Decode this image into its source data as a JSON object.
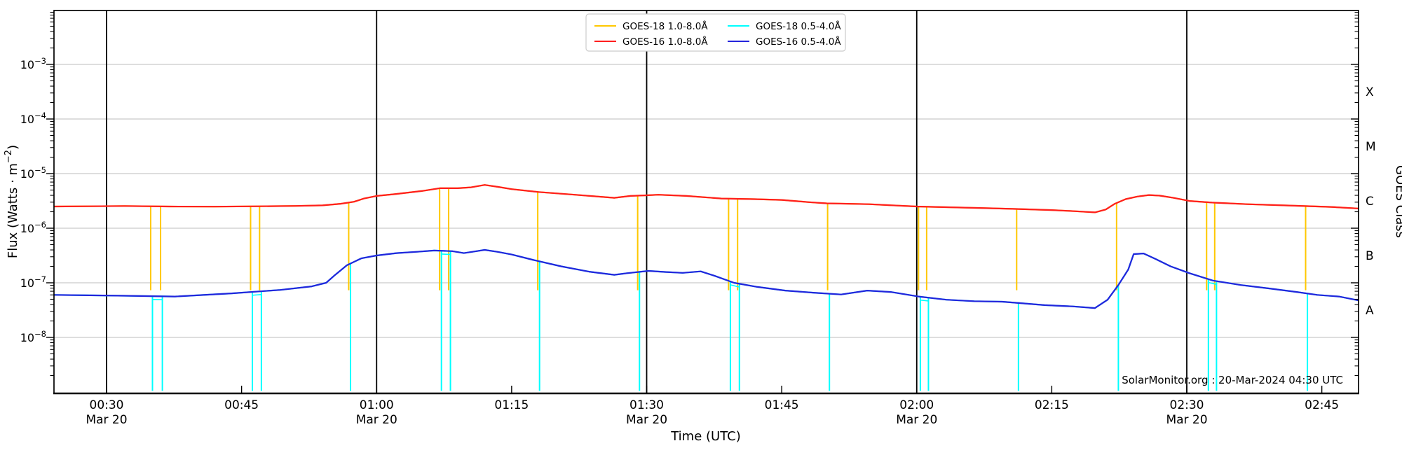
{
  "annotations": {
    "watermark": "SolarMonitor.org : 20-Mar-2024 04:30 UTC"
  },
  "colors": {
    "goes18_long": "#FFC800",
    "goes16_long": "#FF1E1E",
    "goes18_short": "#00FFFF",
    "goes16_short": "#2424DC",
    "grid": "#C9C9C9",
    "frame": "#000000",
    "legend_border": "#CCCCCC",
    "background": "#FFFFFF"
  },
  "chart_data": {
    "type": "line",
    "title": "",
    "x_axis": {
      "label": "Time (UTC)",
      "unit": "minutes after 2024-03-20 00:00 UTC",
      "range_minutes": [
        24.13,
        169.06
      ],
      "major_ticks": [
        {
          "t": 30,
          "label": "00:30",
          "date_label": "Mar 20"
        },
        {
          "t": 45,
          "label": "00:45"
        },
        {
          "t": 60,
          "label": "01:00",
          "date_label": "Mar 20"
        },
        {
          "t": 75,
          "label": "01:15"
        },
        {
          "t": 90,
          "label": "01:30",
          "date_label": "Mar 20"
        },
        {
          "t": 105,
          "label": "01:45"
        },
        {
          "t": 120,
          "label": "02:00",
          "date_label": "Mar 20"
        },
        {
          "t": 135,
          "label": "02:15"
        },
        {
          "t": 150,
          "label": "02:30",
          "date_label": "Mar 20"
        },
        {
          "t": 165,
          "label": "02:45"
        }
      ],
      "day_boundary_line_times": [
        30,
        60,
        90,
        120,
        150
      ]
    },
    "y_axis": {
      "label": "Flux (Watts · m−2)",
      "label_parts": [
        "Flux (Watts · m",
        "−2",
        ")"
      ],
      "scale": "log",
      "range_exponents": [
        -2,
        -9
      ],
      "labeled_exponents": [
        {
          "exp": -3,
          "sup": "−3"
        },
        {
          "exp": -4,
          "sup": "−4"
        },
        {
          "exp": -5,
          "sup": "−5"
        },
        {
          "exp": -6,
          "sup": "−6"
        },
        {
          "exp": -7,
          "sup": "−7"
        },
        {
          "exp": -8,
          "sup": "−8"
        }
      ],
      "grid": true
    },
    "y_axis_right": {
      "label": "GOES Class",
      "classes": [
        {
          "label": "X",
          "center_exponent": -3.5
        },
        {
          "label": "M",
          "center_exponent": -4.5
        },
        {
          "label": "C",
          "center_exponent": -5.5
        },
        {
          "label": "B",
          "center_exponent": -6.5
        },
        {
          "label": "A",
          "center_exponent": -7.5
        }
      ]
    },
    "legend_position": "top-center",
    "series": [
      {
        "name": "GOES-18 1.0-8.0Å",
        "color": "#FFC800",
        "points": [
          [
            24.2,
            2.5e-06
          ],
          [
            28,
            2.52e-06
          ],
          [
            32,
            2.55e-06
          ],
          [
            37,
            2.5e-06
          ],
          [
            42,
            2.48e-06
          ],
          [
            47,
            2.52e-06
          ],
          [
            51,
            2.56e-06
          ],
          [
            54,
            2.62e-06
          ],
          [
            56,
            2.8e-06
          ],
          [
            57.5,
            3.05e-06
          ],
          [
            58.6,
            3.5e-06
          ],
          [
            60,
            3.9e-06
          ],
          [
            62,
            4.2e-06
          ],
          [
            65,
            4.8e-06
          ],
          [
            67,
            5.4e-06
          ],
          [
            69,
            5.4e-06
          ],
          [
            70.5,
            5.6e-06
          ],
          [
            72,
            6.2e-06
          ],
          [
            73.5,
            5.7e-06
          ],
          [
            75,
            5.2e-06
          ],
          [
            78,
            4.6e-06
          ],
          [
            82,
            4.1e-06
          ],
          [
            86.4,
            3.6e-06
          ],
          [
            88.2,
            3.9e-06
          ],
          [
            90,
            4e-06
          ],
          [
            91.3,
            4.1e-06
          ],
          [
            94.4,
            3.9e-06
          ],
          [
            98.3,
            3.5e-06
          ],
          [
            102,
            3.4e-06
          ],
          [
            105,
            3.3e-06
          ],
          [
            108,
            3e-06
          ],
          [
            110,
            2.85e-06
          ],
          [
            114.7,
            2.75e-06
          ],
          [
            120,
            2.5e-06
          ],
          [
            127,
            2.35e-06
          ],
          [
            131,
            2.25e-06
          ],
          [
            135,
            2.15e-06
          ],
          [
            137.5,
            2.05e-06
          ],
          [
            139.8,
            1.95e-06
          ],
          [
            141,
            2.2e-06
          ],
          [
            142,
            2.8e-06
          ],
          [
            143.2,
            3.4e-06
          ],
          [
            144.5,
            3.8e-06
          ],
          [
            145.8,
            4.05e-06
          ],
          [
            147,
            3.95e-06
          ],
          [
            148.5,
            3.6e-06
          ],
          [
            150.3,
            3.15e-06
          ],
          [
            152.8,
            2.95e-06
          ],
          [
            156.7,
            2.75e-06
          ],
          [
            161.4,
            2.6e-06
          ],
          [
            166,
            2.45e-06
          ],
          [
            169,
            2.3e-06
          ]
        ],
        "data_gap_times": [
          34.9,
          36.0,
          46.0,
          47.0,
          56.9,
          67.0,
          68.0,
          77.9,
          89.0,
          99.1,
          100.1,
          110.1,
          120.2,
          121.1,
          131.1,
          142.2,
          152.2,
          153.1,
          163.2
        ],
        "data_gap_floor_flux": 7.3e-08
      },
      {
        "name": "GOES-16 1.0-8.0Å",
        "color": "#FF1E1E",
        "points": [
          [
            24.2,
            2.5e-06
          ],
          [
            28,
            2.52e-06
          ],
          [
            32,
            2.55e-06
          ],
          [
            37,
            2.5e-06
          ],
          [
            42,
            2.48e-06
          ],
          [
            47,
            2.52e-06
          ],
          [
            51,
            2.56e-06
          ],
          [
            54,
            2.62e-06
          ],
          [
            56,
            2.8e-06
          ],
          [
            57.5,
            3.05e-06
          ],
          [
            58.6,
            3.5e-06
          ],
          [
            60,
            3.9e-06
          ],
          [
            62,
            4.2e-06
          ],
          [
            65,
            4.8e-06
          ],
          [
            67,
            5.4e-06
          ],
          [
            69,
            5.4e-06
          ],
          [
            70.5,
            5.6e-06
          ],
          [
            72,
            6.2e-06
          ],
          [
            73.5,
            5.7e-06
          ],
          [
            75,
            5.2e-06
          ],
          [
            78,
            4.6e-06
          ],
          [
            82,
            4.1e-06
          ],
          [
            86.4,
            3.6e-06
          ],
          [
            88.2,
            3.9e-06
          ],
          [
            90,
            4e-06
          ],
          [
            91.3,
            4.1e-06
          ],
          [
            94.4,
            3.9e-06
          ],
          [
            98.3,
            3.5e-06
          ],
          [
            102,
            3.4e-06
          ],
          [
            105,
            3.3e-06
          ],
          [
            108,
            3e-06
          ],
          [
            110,
            2.85e-06
          ],
          [
            114.7,
            2.75e-06
          ],
          [
            120,
            2.5e-06
          ],
          [
            127,
            2.35e-06
          ],
          [
            131,
            2.25e-06
          ],
          [
            135,
            2.15e-06
          ],
          [
            137.5,
            2.05e-06
          ],
          [
            139.8,
            1.95e-06
          ],
          [
            141,
            2.2e-06
          ],
          [
            142,
            2.8e-06
          ],
          [
            143.2,
            3.4e-06
          ],
          [
            144.5,
            3.8e-06
          ],
          [
            145.8,
            4.05e-06
          ],
          [
            147,
            3.95e-06
          ],
          [
            148.5,
            3.6e-06
          ],
          [
            150.3,
            3.15e-06
          ],
          [
            152.8,
            2.95e-06
          ],
          [
            156.7,
            2.75e-06
          ],
          [
            161.4,
            2.6e-06
          ],
          [
            166,
            2.45e-06
          ],
          [
            169,
            2.3e-06
          ]
        ]
      },
      {
        "name": "GOES-18 0.5-4.0Å",
        "color": "#00FFFF",
        "points": [
          [
            24.2,
            6e-08
          ],
          [
            28,
            5.9e-08
          ],
          [
            32,
            5.8e-08
          ],
          [
            37.6,
            5.6e-08
          ],
          [
            43.9,
            6.4e-08
          ],
          [
            49.3,
            7.4e-08
          ],
          [
            52.8,
            8.6e-08
          ],
          [
            54.4,
            1e-07
          ],
          [
            55.4,
            1.4e-07
          ],
          [
            56.7,
            2.1e-07
          ],
          [
            58.3,
            2.8e-07
          ],
          [
            60,
            3.16e-07
          ],
          [
            62.2,
            3.5e-07
          ],
          [
            64.5,
            3.7e-07
          ],
          [
            66.4,
            3.9e-07
          ],
          [
            68.4,
            3.8e-07
          ],
          [
            69.7,
            3.5e-07
          ],
          [
            71.1,
            3.8e-07
          ],
          [
            72,
            4e-07
          ],
          [
            73.4,
            3.7e-07
          ],
          [
            75,
            3.3e-07
          ],
          [
            77.3,
            2.65e-07
          ],
          [
            80.5,
            2e-07
          ],
          [
            83.6,
            1.6e-07
          ],
          [
            86.4,
            1.4e-07
          ],
          [
            87.8,
            1.5e-07
          ],
          [
            90.2,
            1.65e-07
          ],
          [
            92,
            1.58e-07
          ],
          [
            94,
            1.52e-07
          ],
          [
            96,
            1.62e-07
          ],
          [
            97.5,
            1.35e-07
          ],
          [
            99.7,
            1e-07
          ],
          [
            102.3,
            8.4e-08
          ],
          [
            105.4,
            7.2e-08
          ],
          [
            108.5,
            6.6e-08
          ],
          [
            111.6,
            6.1e-08
          ],
          [
            114.5,
            7.2e-08
          ],
          [
            117.1,
            6.8e-08
          ],
          [
            120.2,
            5.6e-08
          ],
          [
            123.3,
            4.9e-08
          ],
          [
            126.4,
            4.6e-08
          ],
          [
            129.5,
            4.5e-08
          ],
          [
            131.1,
            4.3e-08
          ],
          [
            134.2,
            3.9e-08
          ],
          [
            137.3,
            3.7e-08
          ],
          [
            139.8,
            3.45e-08
          ],
          [
            141.2,
            4.9e-08
          ],
          [
            142.4,
            9.1e-08
          ],
          [
            143.5,
            1.75e-07
          ],
          [
            144.1,
            3.35e-07
          ],
          [
            145.2,
            3.45e-07
          ],
          [
            146.6,
            2.7e-07
          ],
          [
            148.2,
            2e-07
          ],
          [
            150.3,
            1.5e-07
          ],
          [
            152.9,
            1.1e-07
          ],
          [
            156,
            9.1e-08
          ],
          [
            159.1,
            7.9e-08
          ],
          [
            162.2,
            6.8e-08
          ],
          [
            164.5,
            6e-08
          ],
          [
            166.9,
            5.6e-08
          ],
          [
            169,
            4.8e-08
          ]
        ],
        "data_gap_times": [
          35.1,
          36.2,
          46.2,
          47.2,
          57.1,
          67.2,
          68.2,
          78.1,
          89.2,
          99.3,
          100.3,
          110.3,
          120.4,
          121.3,
          131.3,
          142.4,
          152.4,
          153.3,
          163.4
        ],
        "data_gap_floor_flux": 1.05e-09,
        "gap_pair_connectors": [
          [
            35.1,
            36.2
          ],
          [
            46.2,
            47.2
          ],
          [
            67.2,
            68.2
          ],
          [
            99.3,
            100.3
          ],
          [
            120.4,
            121.3
          ],
          [
            152.4,
            153.3
          ]
        ]
      },
      {
        "name": "GOES-16 0.5-4.0Å",
        "color": "#2424DC",
        "points": [
          [
            24.2,
            6e-08
          ],
          [
            28,
            5.9e-08
          ],
          [
            32,
            5.8e-08
          ],
          [
            37.6,
            5.6e-08
          ],
          [
            43.9,
            6.4e-08
          ],
          [
            49.3,
            7.4e-08
          ],
          [
            52.8,
            8.6e-08
          ],
          [
            54.4,
            1e-07
          ],
          [
            55.4,
            1.4e-07
          ],
          [
            56.7,
            2.1e-07
          ],
          [
            58.3,
            2.8e-07
          ],
          [
            60,
            3.16e-07
          ],
          [
            62.2,
            3.5e-07
          ],
          [
            64.5,
            3.7e-07
          ],
          [
            66.4,
            3.9e-07
          ],
          [
            68.4,
            3.8e-07
          ],
          [
            69.7,
            3.5e-07
          ],
          [
            71.1,
            3.8e-07
          ],
          [
            72,
            4e-07
          ],
          [
            73.4,
            3.7e-07
          ],
          [
            75,
            3.3e-07
          ],
          [
            77.3,
            2.65e-07
          ],
          [
            80.5,
            2e-07
          ],
          [
            83.6,
            1.6e-07
          ],
          [
            86.4,
            1.4e-07
          ],
          [
            87.8,
            1.5e-07
          ],
          [
            90.2,
            1.65e-07
          ],
          [
            92,
            1.58e-07
          ],
          [
            94,
            1.52e-07
          ],
          [
            96,
            1.62e-07
          ],
          [
            97.5,
            1.35e-07
          ],
          [
            99.7,
            1e-07
          ],
          [
            102.3,
            8.4e-08
          ],
          [
            105.4,
            7.2e-08
          ],
          [
            108.5,
            6.6e-08
          ],
          [
            111.6,
            6.1e-08
          ],
          [
            114.5,
            7.2e-08
          ],
          [
            117.1,
            6.8e-08
          ],
          [
            120.2,
            5.6e-08
          ],
          [
            123.3,
            4.9e-08
          ],
          [
            126.4,
            4.6e-08
          ],
          [
            129.5,
            4.5e-08
          ],
          [
            131.1,
            4.3e-08
          ],
          [
            134.2,
            3.9e-08
          ],
          [
            137.3,
            3.7e-08
          ],
          [
            139.8,
            3.45e-08
          ],
          [
            141.2,
            4.9e-08
          ],
          [
            142.4,
            9.1e-08
          ],
          [
            143.5,
            1.75e-07
          ],
          [
            144.1,
            3.35e-07
          ],
          [
            145.2,
            3.45e-07
          ],
          [
            146.6,
            2.7e-07
          ],
          [
            148.2,
            2e-07
          ],
          [
            150.3,
            1.5e-07
          ],
          [
            152.9,
            1.1e-07
          ],
          [
            156,
            9.1e-08
          ],
          [
            159.1,
            7.9e-08
          ],
          [
            162.2,
            6.8e-08
          ],
          [
            164.5,
            6e-08
          ],
          [
            166.9,
            5.6e-08
          ],
          [
            169,
            4.8e-08
          ]
        ]
      }
    ]
  }
}
